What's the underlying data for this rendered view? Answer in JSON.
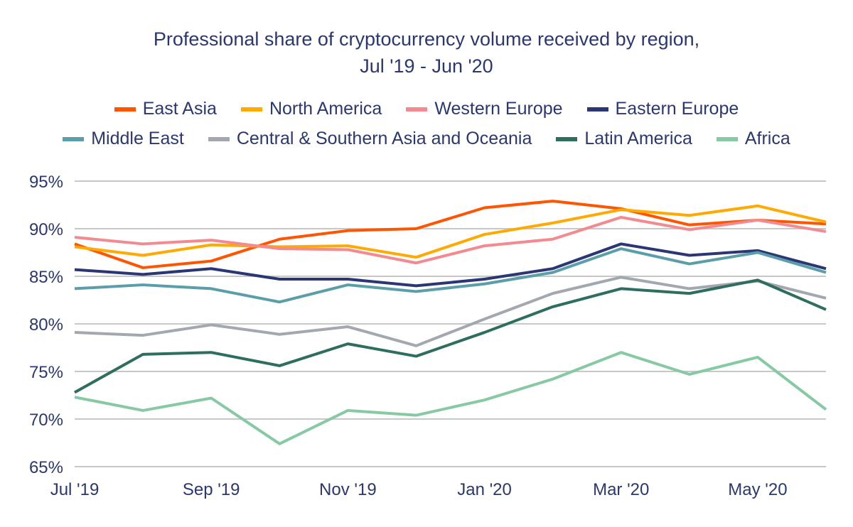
{
  "chart_data": {
    "type": "line",
    "title": "Professional share of cryptocurrency volume received by region,",
    "subtitle": "Jul '19 - Jun '20",
    "xlabel": "",
    "ylabel": "",
    "x": [
      "Jul '19",
      "Aug '19",
      "Sep '19",
      "Oct '19",
      "Nov '19",
      "Dec '19",
      "Jan '20",
      "Feb '20",
      "Mar '20",
      "Apr '20",
      "May '20",
      "Jun '20"
    ],
    "x_tick_labels": [
      "Jul '19",
      "Sep '19",
      "Nov '19",
      "Jan '20",
      "Mar '20",
      "May '20"
    ],
    "y_tick_labels": [
      "95%",
      "90%",
      "85%",
      "80%",
      "75%",
      "70%",
      "65%"
    ],
    "ylim": [
      65,
      95
    ],
    "grid": true,
    "legend_position": "top",
    "series": [
      {
        "name": "East Asia",
        "color": "#ff5500",
        "values": [
          88.4,
          85.9,
          86.6,
          88.9,
          89.8,
          90.0,
          92.2,
          92.9,
          92.1,
          90.4,
          90.9,
          90.5
        ]
      },
      {
        "name": "North America",
        "color": "#ffaa00",
        "values": [
          88.1,
          87.2,
          88.3,
          88.1,
          88.2,
          87.0,
          89.4,
          90.6,
          92.0,
          91.4,
          92.4,
          90.7
        ]
      },
      {
        "name": "Western Europe",
        "color": "#f28a8f",
        "values": [
          89.1,
          88.4,
          88.8,
          87.9,
          87.8,
          86.4,
          88.2,
          88.9,
          91.2,
          89.9,
          90.9,
          89.7
        ]
      },
      {
        "name": "Eastern Europe",
        "color": "#2b3775",
        "values": [
          85.7,
          85.2,
          85.8,
          84.7,
          84.7,
          84.0,
          84.7,
          85.8,
          88.4,
          87.2,
          87.7,
          85.8
        ]
      },
      {
        "name": "Middle East",
        "color": "#5a9ea9",
        "values": [
          83.7,
          84.1,
          83.7,
          82.3,
          84.1,
          83.4,
          84.2,
          85.4,
          87.9,
          86.3,
          87.5,
          85.4
        ]
      },
      {
        "name": "Central & Southern Asia and Oceania",
        "color": "#a3a8b0",
        "values": [
          79.1,
          78.8,
          79.9,
          78.9,
          79.7,
          77.7,
          80.5,
          83.2,
          84.9,
          83.7,
          84.5,
          82.7
        ]
      },
      {
        "name": "Latin America",
        "color": "#2e6e5e",
        "values": [
          72.8,
          76.8,
          77.0,
          75.6,
          77.9,
          76.6,
          79.1,
          81.8,
          83.7,
          83.2,
          84.6,
          81.5
        ]
      },
      {
        "name": "Africa",
        "color": "#86c9a4",
        "values": [
          72.3,
          70.9,
          72.2,
          67.4,
          70.9,
          70.4,
          72.0,
          74.2,
          77.0,
          74.7,
          76.5,
          71.0
        ]
      }
    ]
  }
}
